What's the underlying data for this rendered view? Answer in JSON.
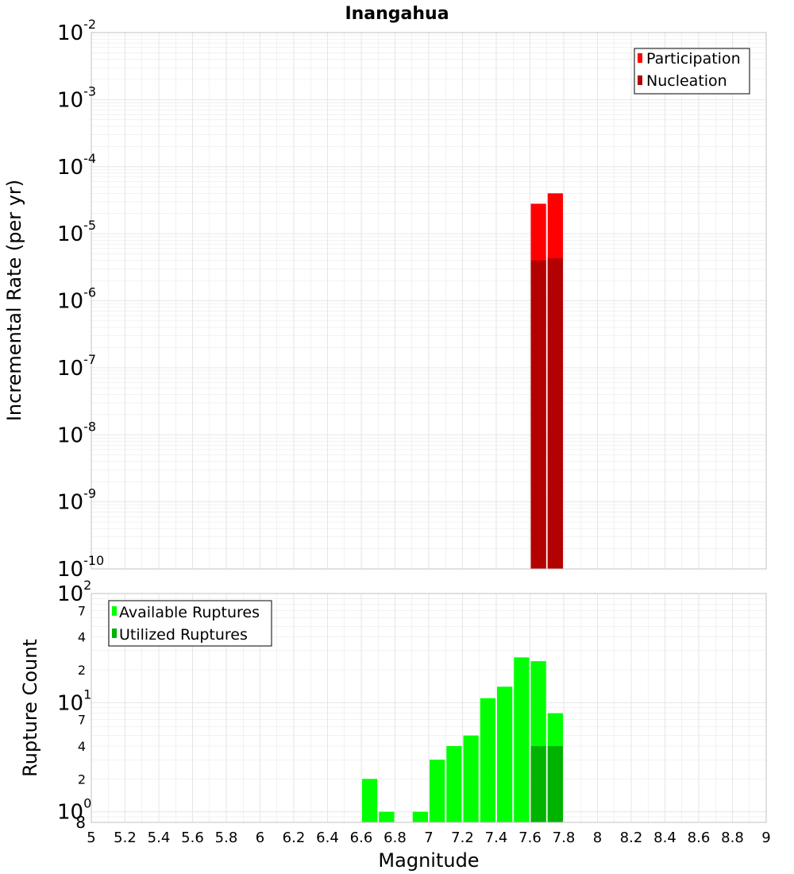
{
  "title": "Inangahua",
  "colors": {
    "participation": "#ff0000",
    "nucleation": "#b30000",
    "available": "#00ff00",
    "utilized": "#00b300",
    "grid": "#e6e6e6",
    "frame": "#c0c0c0"
  },
  "chart_data": [
    {
      "type": "bar",
      "title": "Inangahua",
      "xlabel": "Magnitude",
      "ylabel": "Incremental Rate (per yr)",
      "yscale": "log",
      "xlim": [
        5,
        9
      ],
      "ylim": [
        1e-10,
        0.01
      ],
      "bin_width": 0.1,
      "grid": true,
      "legend_position": "top-right",
      "y_tick_labels": [
        {
          "base": "10",
          "exp": "-10"
        },
        {
          "base": "10",
          "exp": "-9"
        },
        {
          "base": "10",
          "exp": "-8"
        },
        {
          "base": "10",
          "exp": "-7"
        },
        {
          "base": "10",
          "exp": "-6"
        },
        {
          "base": "10",
          "exp": "-5"
        },
        {
          "base": "10",
          "exp": "-4"
        },
        {
          "base": "10",
          "exp": "-3"
        },
        {
          "base": "10",
          "exp": "-2"
        }
      ],
      "series": [
        {
          "name": "Participation",
          "color": "#ff0000",
          "x": [
            7.65,
            7.75
          ],
          "values": [
            2.8e-05,
            4e-05
          ]
        },
        {
          "name": "Nucleation",
          "color": "#b30000",
          "x": [
            7.65,
            7.75
          ],
          "values": [
            4e-06,
            4.3e-06
          ]
        }
      ]
    },
    {
      "type": "bar",
      "xlabel": "Magnitude",
      "ylabel": "Rupture Count",
      "yscale": "log",
      "xlim": [
        5,
        9
      ],
      "ylim": [
        0.8,
        100
      ],
      "bin_width": 0.1,
      "grid": true,
      "legend_position": "top-left",
      "y_tick_labels": [
        {
          "base": "10",
          "exp": "0"
        },
        {
          "base": "10",
          "exp": "1"
        },
        {
          "base": "10",
          "exp": "2"
        }
      ],
      "y_minor_labels": [
        "8",
        "2",
        "4",
        "7",
        "2",
        "4",
        "7"
      ],
      "series": [
        {
          "name": "Available Ruptures",
          "color": "#00ff00",
          "x": [
            6.65,
            6.75,
            6.95,
            7.05,
            7.15,
            7.25,
            7.35,
            7.45,
            7.55,
            7.65,
            7.75
          ],
          "values": [
            2,
            1,
            1,
            3,
            4,
            5,
            11,
            14,
            26,
            24,
            8
          ]
        },
        {
          "name": "Utilized Ruptures",
          "color": "#00b300",
          "x": [
            7.65,
            7.75
          ],
          "values": [
            4,
            4
          ]
        }
      ]
    }
  ],
  "x_tick_labels": [
    "5",
    "5.2",
    "5.4",
    "5.6",
    "5.8",
    "6",
    "6.2",
    "6.4",
    "6.6",
    "6.8",
    "7",
    "7.2",
    "7.4",
    "7.6",
    "7.8",
    "8",
    "8.2",
    "8.4",
    "8.6",
    "8.8",
    "9"
  ]
}
